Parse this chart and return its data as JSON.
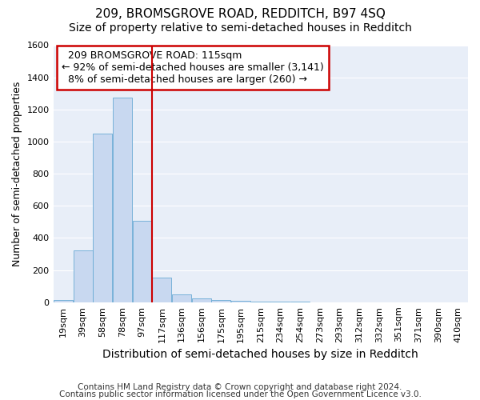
{
  "title": "209, BROMSGROVE ROAD, REDDITCH, B97 4SQ",
  "subtitle": "Size of property relative to semi-detached houses in Redditch",
  "xlabel": "Distribution of semi-detached houses by size in Redditch",
  "ylabel": "Number of semi-detached properties",
  "footnote1": "Contains HM Land Registry data © Crown copyright and database right 2024.",
  "footnote2": "Contains public sector information licensed under the Open Government Licence v3.0.",
  "bin_labels": [
    "19sqm",
    "39sqm",
    "58sqm",
    "78sqm",
    "97sqm",
    "117sqm",
    "136sqm",
    "156sqm",
    "175sqm",
    "195sqm",
    "215sqm",
    "234sqm",
    "254sqm",
    "273sqm",
    "293sqm",
    "312sqm",
    "332sqm",
    "351sqm",
    "371sqm",
    "390sqm",
    "410sqm"
  ],
  "bar_heights": [
    15,
    325,
    1050,
    1275,
    505,
    155,
    50,
    25,
    15,
    10,
    5,
    2,
    2,
    1,
    1,
    0,
    0,
    0,
    0,
    0,
    0
  ],
  "bar_color": "#c8d8f0",
  "bar_edge_color": "#6aaad4",
  "property_bin_index": 5,
  "property_label": "209 BROMSGROVE ROAD: 115sqm",
  "smaller_pct": 92,
  "smaller_count": 3141,
  "larger_pct": 8,
  "larger_count": 260,
  "vline_color": "#cc0000",
  "annotation_box_color": "#cc0000",
  "ylim": [
    0,
    1600
  ],
  "yticks": [
    0,
    200,
    400,
    600,
    800,
    1000,
    1200,
    1400,
    1600
  ],
  "plot_bg_color": "#e8eef8",
  "figure_bg_color": "#ffffff",
  "grid_color": "#ffffff",
  "title_fontsize": 11,
  "subtitle_fontsize": 10,
  "ylabel_fontsize": 9,
  "xlabel_fontsize": 10,
  "tick_fontsize": 8,
  "annot_fontsize": 9,
  "footnote_fontsize": 7.5
}
